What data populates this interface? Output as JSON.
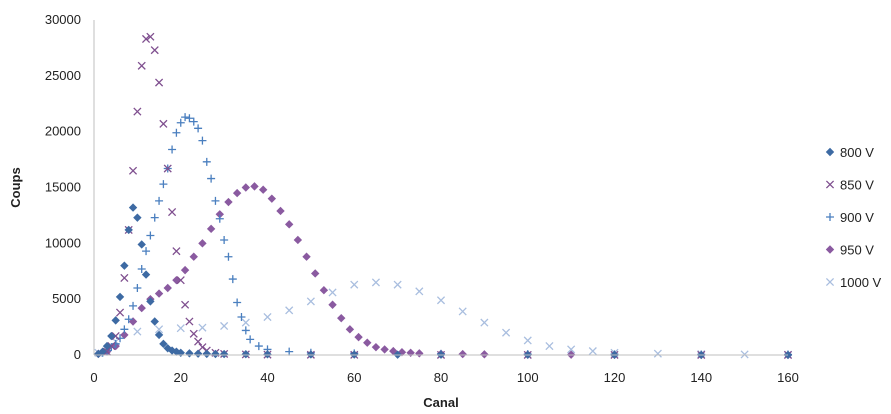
{
  "chart_data": {
    "type": "scatter",
    "xlabel": "Canal",
    "ylabel": "Coups",
    "xlim": [
      0,
      160
    ],
    "ylim": [
      0,
      30000
    ],
    "xticks": [
      0,
      20,
      40,
      60,
      80,
      100,
      120,
      140,
      160
    ],
    "yticks": [
      0,
      5000,
      10000,
      15000,
      20000,
      25000,
      30000
    ],
    "grid": false,
    "legend_position": "right",
    "series": [
      {
        "name": "800 V",
        "marker": "diamond",
        "color": "#3d6aa3",
        "x": [
          1,
          2,
          3,
          4,
          5,
          6,
          7,
          8,
          9,
          10,
          11,
          12,
          13,
          14,
          15,
          16,
          17,
          18,
          19,
          20,
          22,
          24,
          26,
          28,
          30,
          35,
          40,
          50,
          60,
          70,
          80,
          100,
          120,
          140,
          160
        ],
        "y": [
          100,
          300,
          800,
          1700,
          3100,
          5200,
          8000,
          11200,
          13200,
          12300,
          9900,
          7200,
          4800,
          3000,
          1800,
          1000,
          600,
          400,
          300,
          200,
          150,
          120,
          100,
          90,
          80,
          70,
          60,
          50,
          40,
          30,
          25,
          20,
          15,
          10,
          10
        ]
      },
      {
        "name": "850 V",
        "marker": "x",
        "color": "#7f4f8f",
        "x": [
          3,
          4,
          5,
          6,
          7,
          8,
          9,
          10,
          11,
          12,
          13,
          14,
          15,
          16,
          17,
          18,
          19,
          20,
          21,
          22,
          23,
          24,
          25,
          26,
          28,
          30,
          35,
          40,
          50,
          60,
          80,
          100,
          120,
          140,
          160
        ],
        "y": [
          300,
          800,
          1700,
          3800,
          6900,
          11200,
          16500,
          21800,
          25900,
          28300,
          28500,
          27300,
          24400,
          20700,
          16700,
          12800,
          9300,
          6700,
          4500,
          3000,
          1900,
          1200,
          700,
          400,
          200,
          100,
          50,
          30,
          20,
          15,
          10,
          10,
          10,
          5,
          5
        ]
      },
      {
        "name": "900 V",
        "marker": "plus",
        "color": "#4a7fbf",
        "x": [
          2,
          3,
          4,
          5,
          6,
          7,
          8,
          9,
          10,
          11,
          12,
          13,
          14,
          15,
          16,
          17,
          18,
          19,
          20,
          21,
          22,
          23,
          24,
          25,
          26,
          27,
          28,
          29,
          30,
          31,
          32,
          33,
          34,
          35,
          36,
          38,
          40,
          45,
          50,
          60,
          80,
          100,
          120,
          140,
          160
        ],
        "y": [
          200,
          400,
          700,
          1000,
          1500,
          2300,
          3200,
          4400,
          6000,
          7700,
          9300,
          10700,
          12300,
          13800,
          15300,
          16700,
          18400,
          19900,
          20800,
          21300,
          21200,
          20900,
          20300,
          19200,
          17300,
          15800,
          13800,
          12200,
          10300,
          8800,
          6800,
          4700,
          3400,
          2200,
          1400,
          800,
          500,
          300,
          200,
          150,
          100,
          80,
          60,
          50,
          40
        ]
      },
      {
        "name": "950 V",
        "marker": "diamond",
        "color": "#8a5aa0",
        "x": [
          1,
          3,
          5,
          7,
          9,
          11,
          13,
          15,
          17,
          19,
          21,
          23,
          25,
          27,
          29,
          31,
          33,
          35,
          37,
          39,
          41,
          43,
          45,
          47,
          49,
          51,
          53,
          55,
          57,
          59,
          61,
          63,
          65,
          67,
          69,
          71,
          73,
          75,
          80,
          85,
          90,
          100,
          110,
          120,
          140,
          160
        ],
        "y": [
          100,
          300,
          800,
          1800,
          3000,
          4200,
          5000,
          5500,
          6000,
          6700,
          7600,
          8800,
          10000,
          11300,
          12600,
          13700,
          14500,
          15000,
          15100,
          14800,
          14000,
          12900,
          11700,
          10300,
          8800,
          7300,
          5800,
          4500,
          3300,
          2300,
          1600,
          1100,
          700,
          500,
          350,
          250,
          200,
          150,
          100,
          80,
          60,
          40,
          30,
          20,
          10,
          5
        ]
      },
      {
        "name": "1000 V",
        "marker": "x",
        "color": "#a9bedf",
        "x": [
          1,
          5,
          10,
          15,
          20,
          25,
          30,
          35,
          40,
          45,
          50,
          55,
          60,
          65,
          70,
          75,
          80,
          85,
          90,
          95,
          100,
          105,
          110,
          115,
          120,
          130,
          140,
          150,
          160
        ],
        "y": [
          200,
          1200,
          2100,
          2300,
          2400,
          2450,
          2600,
          2900,
          3400,
          4000,
          4800,
          5600,
          6300,
          6500,
          6300,
          5700,
          4900,
          3900,
          2900,
          2000,
          1300,
          800,
          500,
          350,
          200,
          120,
          80,
          50,
          30
        ]
      }
    ]
  }
}
